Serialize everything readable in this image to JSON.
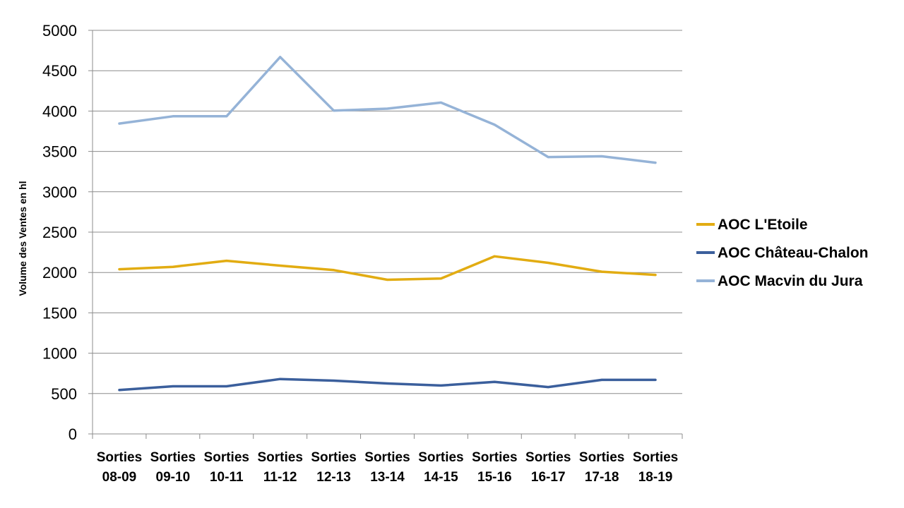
{
  "chart_data": {
    "type": "line",
    "title": "",
    "xlabel": "",
    "ylabel": "Volume des Ventes en hl",
    "ylim": [
      0,
      5000
    ],
    "yticks": [
      0,
      500,
      1000,
      1500,
      2000,
      2500,
      3000,
      3500,
      4000,
      4500,
      5000
    ],
    "grid": "horizontal",
    "legend_position": "right",
    "categories": [
      [
        "Sorties",
        "08-09"
      ],
      [
        "Sorties",
        "09-10"
      ],
      [
        "Sorties",
        "10-11"
      ],
      [
        "Sorties",
        "11-12"
      ],
      [
        "Sorties",
        "12-13"
      ],
      [
        "Sorties",
        "13-14"
      ],
      [
        "Sorties",
        "14-15"
      ],
      [
        "Sorties",
        "15-16"
      ],
      [
        "Sorties",
        "16-17"
      ],
      [
        "Sorties",
        "17-18"
      ],
      [
        "Sorties",
        "18-19"
      ]
    ],
    "series": [
      {
        "name": "AOC L'Etoile",
        "color": "#E2AC12",
        "values": [
          2040,
          2070,
          2145,
          2085,
          2030,
          1910,
          1925,
          2200,
          2120,
          2010,
          1970
        ]
      },
      {
        "name": "AOC Château-Chalon",
        "color": "#3B5F9C",
        "values": [
          545,
          590,
          590,
          680,
          660,
          625,
          600,
          645,
          580,
          670,
          670
        ]
      },
      {
        "name": "AOC Macvin du Jura",
        "color": "#95B3D7",
        "values": [
          3845,
          3935,
          3935,
          4670,
          4005,
          4030,
          4105,
          3830,
          3430,
          3440,
          3360
        ]
      }
    ]
  }
}
